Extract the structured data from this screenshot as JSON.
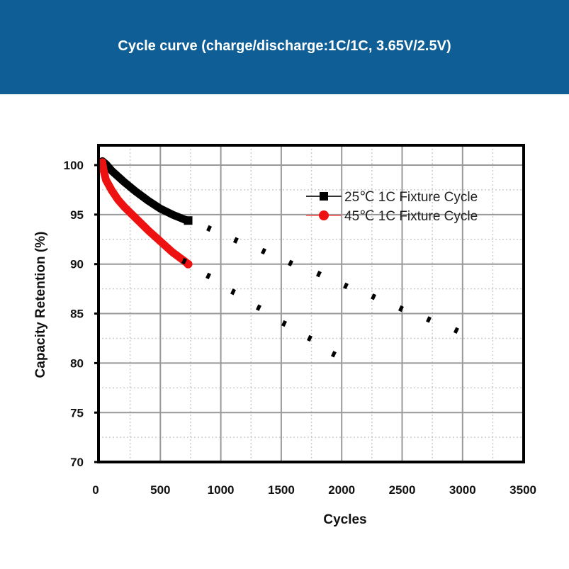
{
  "header": {
    "title": "Cycle curve (charge/discharge:1C/1C, 3.65V/2.5V)",
    "background": "#0f5e96"
  },
  "chart_data": {
    "type": "line",
    "title": "Cycle curve (charge/discharge:1C/1C, 3.65V/2.5V)",
    "xlabel": "Cycles",
    "ylabel": "Capacity Retention (%)",
    "xlim": [
      0,
      3500
    ],
    "ylim": [
      70,
      102
    ],
    "xticks": [
      0,
      500,
      1000,
      1500,
      2000,
      2500,
      3000,
      3500
    ],
    "yticks": [
      70,
      75,
      80,
      85,
      90,
      95,
      100
    ],
    "grid": true,
    "legend_position": "top-right",
    "series": [
      {
        "name": "25℃ 1C  Fixture Cycle",
        "color": "#000000",
        "marker": "square",
        "x": [
          20,
          50,
          100,
          200,
          300,
          400,
          500,
          600,
          700,
          730
        ],
        "y": [
          100.4,
          100.1,
          99.4,
          98.3,
          97.3,
          96.4,
          95.6,
          95.0,
          94.5,
          94.4
        ]
      },
      {
        "name": "45℃ 1C  Fixture Cycle",
        "color": "#ee1111",
        "marker": "circle",
        "x": [
          20,
          30,
          50,
          100,
          150,
          200,
          300,
          400,
          500,
          600,
          700,
          730
        ],
        "y": [
          100.3,
          99.5,
          98.5,
          97.4,
          96.5,
          95.8,
          94.6,
          93.4,
          92.3,
          91.2,
          90.3,
          90.0
        ]
      },
      {
        "color": "#000000",
        "marker": "dash",
        "x": [
          903,
          1125,
          1354,
          1577,
          1811,
          2034,
          2263,
          2491,
          2720,
          2948
        ],
        "y": [
          93.6,
          92.4,
          91.3,
          90.1,
          89.0,
          87.8,
          86.7,
          85.5,
          84.4,
          83.3
        ]
      },
      {
        "color": "#000000",
        "marker": "dash",
        "x": [
          697,
          897,
          1102,
          1313,
          1524,
          1735,
          1934
        ],
        "y": [
          90.3,
          88.8,
          87.2,
          85.6,
          84.0,
          82.5,
          80.9
        ]
      }
    ]
  }
}
